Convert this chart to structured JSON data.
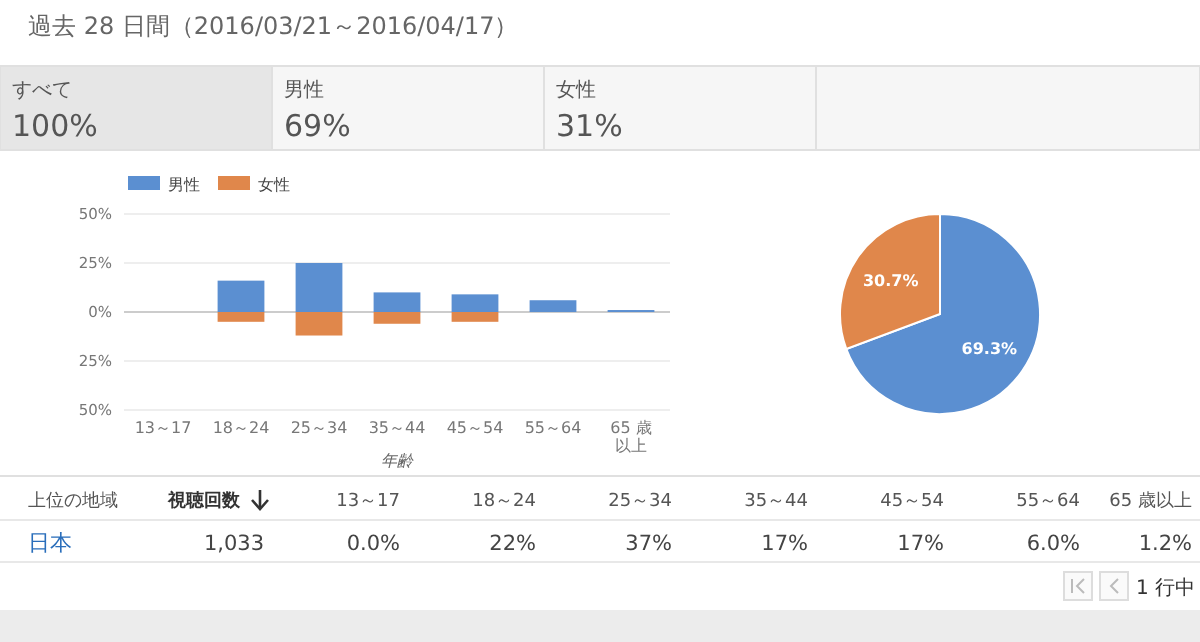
{
  "chart_data": [
    {
      "type": "other",
      "title": "過去 28 日間（2016/03/21～2016/04/17）",
      "categories": [
        "すべて",
        "男性",
        "女性"
      ],
      "value_labels": [
        "100%",
        "69%",
        "31%"
      ]
    },
    {
      "type": "bar",
      "stacked": true,
      "xlabel": "年齢",
      "categories": [
        "13～17",
        "18～24",
        "25～34",
        "35～44",
        "45～54",
        "55～64",
        "65 歳以上"
      ],
      "series": [
        {
          "name": "男性",
          "color": "#5b8fd1",
          "values": [
            0,
            16,
            25,
            10,
            9,
            6,
            1
          ]
        },
        {
          "name": "女性",
          "color": "#e0874b",
          "values": [
            0,
            -5,
            -12,
            -6,
            -5,
            0,
            0
          ]
        }
      ],
      "ylim": [
        -50,
        50
      ],
      "yticks": [
        {
          "value": -50,
          "label": "50%"
        },
        {
          "value": -25,
          "label": "25%"
        },
        {
          "value": 0,
          "label": "0%"
        },
        {
          "value": 25,
          "label": "25%"
        },
        {
          "value": 50,
          "label": "50%"
        }
      ],
      "grid": "y",
      "legend": "top left"
    },
    {
      "type": "pie",
      "categories": [
        null,
        null
      ],
      "values": [
        69.3,
        30.7
      ],
      "colors": [
        "#5b8fd1",
        "#e0874b"
      ],
      "value_labels": [
        "69.3%",
        "30.7%"
      ]
    },
    {
      "type": "other",
      "categories": [
        "13～17",
        "18～24",
        "25～34",
        "35～44",
        "45～54",
        "55～64",
        "65 歳以上"
      ],
      "value_labels": [
        "0.0%",
        "22%",
        "37%",
        "17%",
        "17%",
        "6.0%",
        "1.2%"
      ],
      "annotations": [
        "上位の地域",
        "視聴回数",
        "日本",
        "1,033",
        "1 行中"
      ]
    }
  ]
}
